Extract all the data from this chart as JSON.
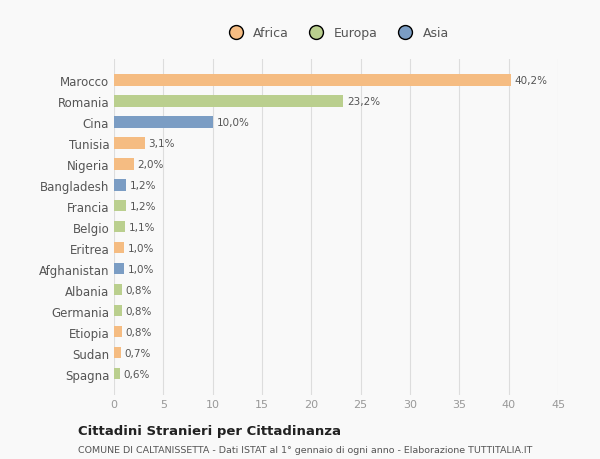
{
  "countries": [
    "Marocco",
    "Romania",
    "Cina",
    "Tunisia",
    "Nigeria",
    "Bangladesh",
    "Francia",
    "Belgio",
    "Eritrea",
    "Afghanistan",
    "Albania",
    "Germania",
    "Etiopia",
    "Sudan",
    "Spagna"
  ],
  "values": [
    40.2,
    23.2,
    10.0,
    3.1,
    2.0,
    1.2,
    1.2,
    1.1,
    1.0,
    1.0,
    0.8,
    0.8,
    0.8,
    0.7,
    0.6
  ],
  "labels": [
    "40,2%",
    "23,2%",
    "10,0%",
    "3,1%",
    "2,0%",
    "1,2%",
    "1,2%",
    "1,1%",
    "1,0%",
    "1,0%",
    "0,8%",
    "0,8%",
    "0,8%",
    "0,7%",
    "0,6%"
  ],
  "continents": [
    "Africa",
    "Europa",
    "Asia",
    "Africa",
    "Africa",
    "Asia",
    "Europa",
    "Europa",
    "Africa",
    "Asia",
    "Europa",
    "Europa",
    "Africa",
    "Africa",
    "Europa"
  ],
  "colors": {
    "Africa": "#F5BC82",
    "Europa": "#BACF8E",
    "Asia": "#7B9DC4"
  },
  "xlim": [
    0,
    45
  ],
  "xticks": [
    0,
    5,
    10,
    15,
    20,
    25,
    30,
    35,
    40,
    45
  ],
  "title1": "Cittadini Stranieri per Cittadinanza",
  "title2": "COMUNE DI CALTANISSETTA - Dati ISTAT al 1° gennaio di ogni anno - Elaborazione TUTTITALIA.IT",
  "background_color": "#f9f9f9",
  "grid_color": "#dddddd",
  "label_color": "#555555",
  "tick_color": "#999999",
  "bar_height": 0.55
}
